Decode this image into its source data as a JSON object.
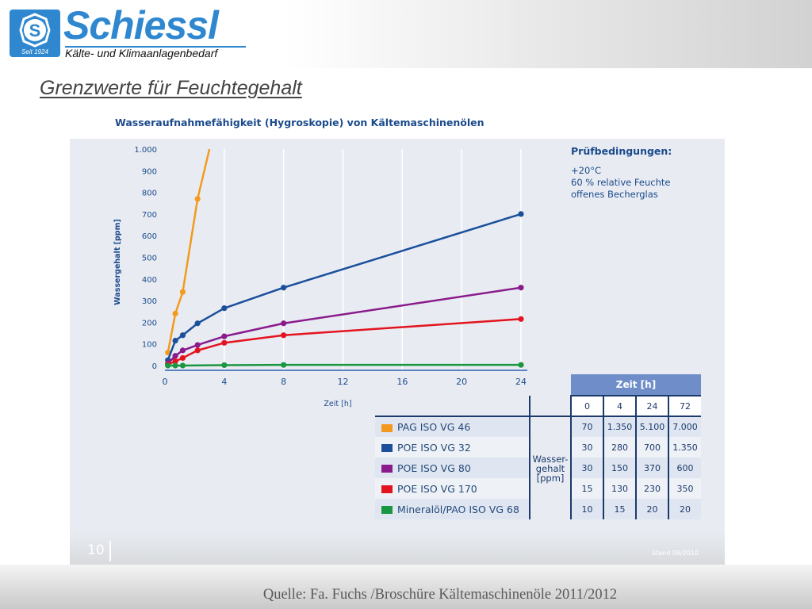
{
  "header": {
    "brand": "Schiessl",
    "tagline": "Kälte- und Klimaanlagenbedarf",
    "logo_since": "Seit 1924",
    "logo_letter": "S",
    "colors": {
      "brand_blue": "#2f88cf"
    }
  },
  "slide": {
    "title": "Grenzwerte für Feuchtegehalt",
    "number": "10",
    "stand": "Stand 08/2010",
    "source": "Quelle: Fa. Fuchs /Broschüre Kältemaschinenöle 2011/2012"
  },
  "test_conditions": {
    "title": "Prüfbedingungen:",
    "lines": [
      "+20°C",
      "60 % relative Feuchte",
      "offenes Becherglas"
    ]
  },
  "chart_data": {
    "type": "line",
    "title": "Wasseraufnahmefähigkeit (Hygroskopie) von Kältemaschinenölen",
    "xlabel": "Zeit [h]",
    "ylabel": "Wassergehalt [ppm]",
    "xlim": [
      0,
      24
    ],
    "ylim": [
      0,
      1000
    ],
    "x_ticks": [
      0,
      4,
      8,
      12,
      16,
      20,
      24
    ],
    "y_ticks": [
      0,
      100,
      200,
      300,
      400,
      500,
      600,
      700,
      800,
      900,
      1000
    ],
    "y_tick_labels": [
      "0",
      "100",
      "200",
      "300",
      "400",
      "500",
      "600",
      "700",
      "800",
      "900",
      "1.000"
    ],
    "grid": "vertical",
    "series": [
      {
        "name": "PAG ISO VG 46",
        "color": "#f39a1e",
        "points": [
          [
            0.2,
            60
          ],
          [
            0.7,
            240
          ],
          [
            1.2,
            340
          ],
          [
            2.2,
            770
          ]
        ],
        "line_end": [
          3.0,
          1000
        ]
      },
      {
        "name": "POE ISO VG 32",
        "color": "#1b4f9c",
        "points": [
          [
            0.2,
            25
          ],
          [
            0.7,
            115
          ],
          [
            1.2,
            140
          ],
          [
            2.2,
            195
          ],
          [
            4,
            265
          ],
          [
            8,
            360
          ],
          [
            24,
            700
          ]
        ]
      },
      {
        "name": "POE ISO VG 80",
        "color": "#8a1b8c",
        "points": [
          [
            0.2,
            10
          ],
          [
            0.7,
            45
          ],
          [
            1.2,
            70
          ],
          [
            2.2,
            95
          ],
          [
            4,
            135
          ],
          [
            8,
            195
          ],
          [
            24,
            360
          ]
        ]
      },
      {
        "name": "POE ISO VG 170",
        "color": "#e3141f",
        "points": [
          [
            0.2,
            5
          ],
          [
            0.7,
            20
          ],
          [
            1.2,
            35
          ],
          [
            2.2,
            70
          ],
          [
            4,
            105
          ],
          [
            8,
            140
          ],
          [
            24,
            215
          ]
        ]
      },
      {
        "name": "Mineralöl/PAO ISO VG 68",
        "color": "#1a9640",
        "points": [
          [
            0.2,
            0
          ],
          [
            0.7,
            0
          ],
          [
            1.2,
            0
          ],
          [
            4,
            2
          ],
          [
            8,
            3
          ],
          [
            24,
            3
          ]
        ]
      }
    ],
    "table": {
      "header": "Zeit [h]",
      "time_columns": [
        "0",
        "4",
        "24",
        "72"
      ],
      "unit_label": [
        "Wasser-",
        "gehalt",
        "[ppm]"
      ],
      "rows": [
        {
          "name": "PAG ISO VG 46",
          "color": "#f39a1e",
          "values": [
            "70",
            "1.350",
            "5.100",
            "7.000"
          ]
        },
        {
          "name": "POE ISO VG 32",
          "color": "#1b4f9c",
          "values": [
            "30",
            "280",
            "700",
            "1.350"
          ]
        },
        {
          "name": "POE ISO VG 80",
          "color": "#8a1b8c",
          "values": [
            "30",
            "150",
            "370",
            "600"
          ]
        },
        {
          "name": "POE ISO VG 170",
          "color": "#e3141f",
          "values": [
            "15",
            "130",
            "230",
            "350"
          ]
        },
        {
          "name": "Mineralöl/PAO ISO VG 68",
          "color": "#1a9640",
          "values": [
            "10",
            "15",
            "20",
            "20"
          ]
        }
      ]
    }
  }
}
